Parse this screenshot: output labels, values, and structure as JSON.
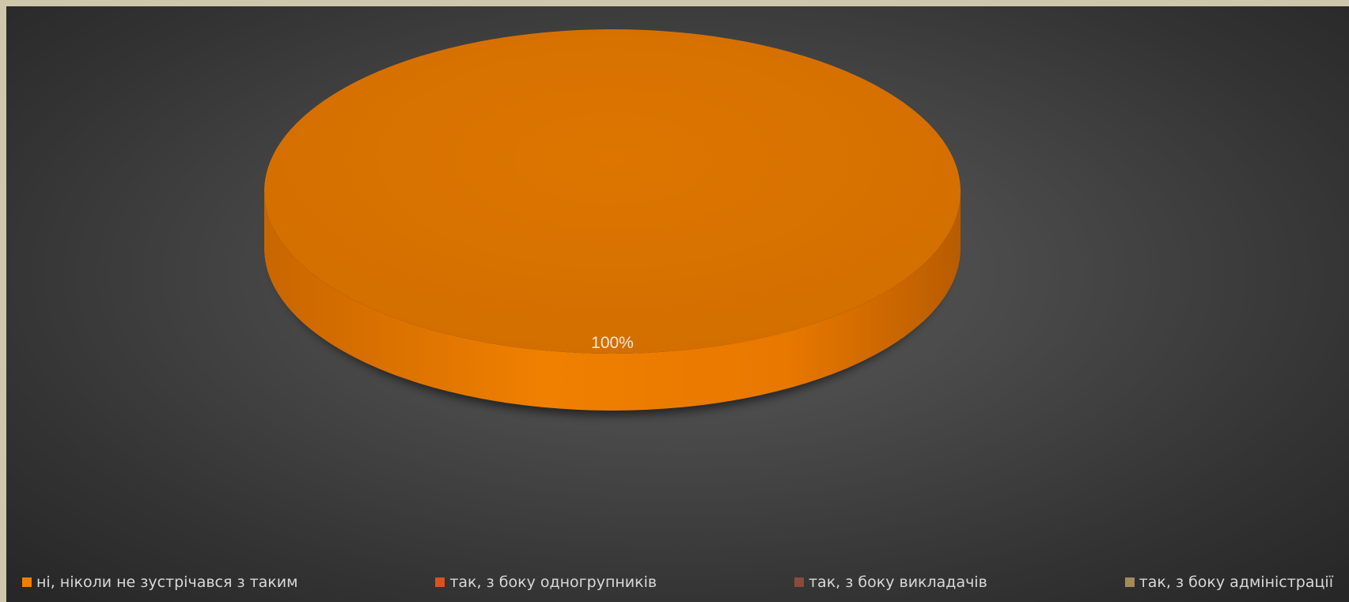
{
  "chart_data": {
    "type": "pie",
    "title": "",
    "categories": [
      "ні, ніколи не зустрічався з таким",
      "так, з боку одногрупників",
      "так, з боку викладачів",
      "так, з боку адміністрації"
    ],
    "values": [
      100,
      0,
      0,
      0
    ],
    "data_labels": [
      "100%"
    ],
    "colors": [
      "#f07f00",
      "#d9531e",
      "#8c4a3c",
      "#a58b5a"
    ],
    "legend_position": "bottom",
    "style": "3d"
  }
}
